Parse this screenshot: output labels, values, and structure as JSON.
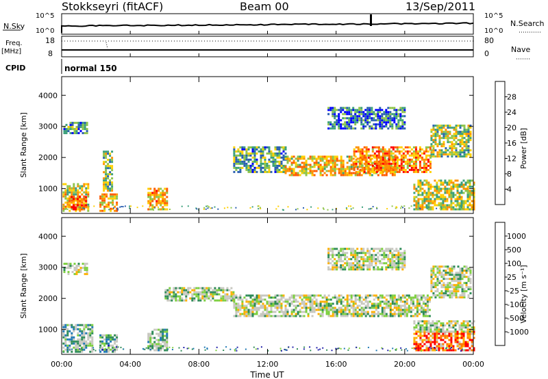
{
  "header": {
    "title": "Stokkseyri (fitACF)",
    "beam": "Beam 00",
    "date": "13/Sep/2011"
  },
  "strips": {
    "nsky_label": "N.Sky",
    "nsearch_label": "N.Search",
    "nsky_ticks": [
      "10^5",
      "10^0"
    ],
    "freq_label_top": "Freq.",
    "freq_label_unit": "[MHz]",
    "freq_ticks": [
      "18",
      "8"
    ],
    "nave_label": "Nave",
    "nave_ticks": [
      "80",
      "0"
    ],
    "cpid_label": "CPID",
    "cpid_value": "normal 150"
  },
  "chart_data": [
    {
      "type": "heatmap",
      "name": "power",
      "ylabel": "Slant Range [km]",
      "yticks": [
        "4000",
        "3000",
        "2000",
        "1000"
      ],
      "ylim": [
        200,
        4600
      ],
      "colorbar_label": "Power [dB]",
      "colorbar_ticks": [
        "28",
        "24",
        "20",
        "16",
        "12",
        "8",
        "4"
      ],
      "colorbar_colors": [
        "#ff0000",
        "#ff5a00",
        "#ff9100",
        "#ffd000",
        "#8ec44a",
        "#3a9f7a",
        "#2a5fb0",
        "#0000ff"
      ],
      "regions": [
        {
          "t0": 0.05,
          "t1": 1.6,
          "r0": 250,
          "r1": 1150,
          "level": 0.55
        },
        {
          "t0": 0.4,
          "t1": 1.4,
          "r0": 300,
          "r1": 700,
          "level": 0.85
        },
        {
          "t0": 0.1,
          "t1": 1.5,
          "r0": 2750,
          "r1": 3100,
          "level": 0.3
        },
        {
          "t0": 2.2,
          "t1": 3.2,
          "r0": 250,
          "r1": 800,
          "level": 0.6
        },
        {
          "t0": 2.4,
          "t1": 2.9,
          "r0": 900,
          "r1": 2200,
          "level": 0.45
        },
        {
          "t0": 5.0,
          "t1": 6.2,
          "r0": 300,
          "r1": 1000,
          "level": 0.65
        },
        {
          "t0": 10.0,
          "t1": 13.0,
          "r0": 1500,
          "r1": 2300,
          "level": 0.35
        },
        {
          "t0": 13.0,
          "t1": 19.5,
          "r0": 1400,
          "r1": 2000,
          "level": 0.6
        },
        {
          "t0": 17.0,
          "t1": 21.5,
          "r0": 1500,
          "r1": 2300,
          "level": 0.7
        },
        {
          "t0": 21.5,
          "t1": 23.8,
          "r0": 2000,
          "r1": 3000,
          "level": 0.45
        },
        {
          "t0": 15.5,
          "t1": 20.0,
          "r0": 2900,
          "r1": 3600,
          "level": 0.25
        },
        {
          "t0": 20.5,
          "t1": 24.0,
          "r0": 300,
          "r1": 1250,
          "level": 0.5
        }
      ]
    },
    {
      "type": "heatmap",
      "name": "velocity",
      "ylabel": "Slant Range [km]",
      "yticks": [
        "4000",
        "3000",
        "2000",
        "1000"
      ],
      "ylim": [
        200,
        4600
      ],
      "xlabel": "Time UT",
      "xticks": [
        "00:00",
        "04:00",
        "08:00",
        "12:00",
        "16:00",
        "20:00",
        "00:00"
      ],
      "xlim": [
        0,
        24
      ],
      "colorbar_label": "Velocity [m s⁻¹]",
      "colorbar_ticks": [
        "1000",
        "500",
        "100",
        "25",
        "-25",
        "-100",
        "-500",
        "-1000"
      ],
      "colorbar_colors": [
        "#2222aa",
        "#1f78b4",
        "#2e8b57",
        "#7dcf3f",
        "#c8c8c0",
        "#c8c8c0",
        "#ffb000",
        "#ff7a00",
        "#ff0000"
      ],
      "regions": [
        {
          "t0": 0.1,
          "t1": 1.5,
          "r0": 2750,
          "r1": 3100,
          "level": 0.5
        },
        {
          "t0": 0.05,
          "t1": 1.8,
          "r0": 250,
          "r1": 1150,
          "level": 0.4
        },
        {
          "t0": 2.2,
          "t1": 3.2,
          "r0": 250,
          "r1": 800,
          "level": 0.35
        },
        {
          "t0": 5.0,
          "t1": 6.2,
          "r0": 300,
          "r1": 1000,
          "level": 0.4
        },
        {
          "t0": 6.0,
          "t1": 10.0,
          "r0": 1900,
          "r1": 2300,
          "level": 0.5
        },
        {
          "t0": 10.0,
          "t1": 21.5,
          "r0": 1400,
          "r1": 2100,
          "level": 0.5
        },
        {
          "t0": 21.5,
          "t1": 23.8,
          "r0": 2000,
          "r1": 3000,
          "level": 0.5
        },
        {
          "t0": 15.5,
          "t1": 20.0,
          "r0": 2900,
          "r1": 3600,
          "level": 0.5
        },
        {
          "t0": 20.5,
          "t1": 24.0,
          "r0": 300,
          "r1": 900,
          "level": 0.85
        },
        {
          "t0": 20.5,
          "t1": 24.0,
          "r0": 900,
          "r1": 1250,
          "level": 0.5
        }
      ]
    }
  ]
}
